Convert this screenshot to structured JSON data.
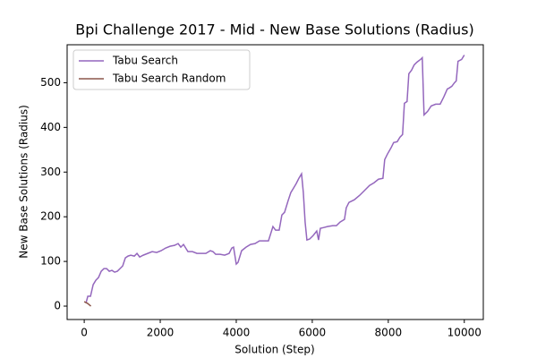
{
  "chart_data": {
    "type": "line",
    "title": "Bpi Challenge 2017 - Mid - New Base Solutions (Radius)",
    "x_label": "Solution (Step)",
    "y_label": "New Base Solutions (Radius)",
    "xlim": [
      -450,
      10500
    ],
    "xticks": [
      0,
      2000,
      4000,
      6000,
      8000,
      10000
    ],
    "ylim": [
      -30,
      585
    ],
    "yticks": [
      0,
      100,
      200,
      300,
      400,
      500
    ],
    "legend": "upper left",
    "series": [
      {
        "name": "Tabu Search",
        "color": "#9467bd",
        "x": [
          50,
          94,
          165,
          235,
          306,
          376,
          447,
          518,
          588,
          659,
          729,
          800,
          871,
          941,
          1012,
          1082,
          1153,
          1224,
          1318,
          1388,
          1459,
          1553,
          1671,
          1788,
          1906,
          2024,
          2141,
          2259,
          2376,
          2471,
          2541,
          2612,
          2729,
          2847,
          2965,
          3082,
          3200,
          3318,
          3388,
          3459,
          3576,
          3694,
          3812,
          3882,
          3929,
          4000,
          4047,
          4141,
          4259,
          4376,
          4494,
          4612,
          4729,
          4847,
          4965,
          5035,
          5129,
          5200,
          5271,
          5365,
          5435,
          5506,
          5576,
          5647,
          5718,
          5765,
          5812,
          5859,
          5929,
          6024,
          6118,
          6165,
          6212,
          6306,
          6400,
          6541,
          6635,
          6729,
          6847,
          6894,
          6965,
          7106,
          7247,
          7388,
          7506,
          7624,
          7741,
          7859,
          7906,
          7976,
          8071,
          8141,
          8235,
          8306,
          8376,
          8424,
          8494,
          8541,
          8612,
          8682,
          8753,
          8847,
          8894,
          8941,
          9035,
          9129,
          9247,
          9365,
          9459,
          9553,
          9600,
          9671,
          9741,
          9788,
          9835,
          9929,
          10000
        ],
        "values": [
          8,
          22,
          22,
          48,
          58,
          64,
          78,
          84,
          84,
          78,
          80,
          76,
          78,
          84,
          90,
          108,
          112,
          114,
          112,
          118,
          110,
          114,
          118,
          122,
          120,
          124,
          130,
          134,
          136,
          140,
          132,
          138,
          122,
          122,
          118,
          118,
          118,
          124,
          122,
          116,
          116,
          114,
          118,
          130,
          132,
          94,
          98,
          124,
          132,
          138,
          140,
          146,
          146,
          146,
          178,
          170,
          170,
          204,
          210,
          236,
          254,
          264,
          274,
          286,
          296,
          254,
          188,
          148,
          150,
          158,
          168,
          148,
          174,
          176,
          178,
          180,
          180,
          188,
          194,
          220,
          232,
          238,
          248,
          260,
          270,
          276,
          284,
          286,
          328,
          340,
          354,
          366,
          368,
          378,
          384,
          454,
          458,
          520,
          528,
          540,
          546,
          552,
          556,
          428,
          436,
          448,
          452,
          452,
          468,
          486,
          488,
          492,
          500,
          504,
          548,
          552,
          562
        ]
      },
      {
        "name": "Tabu Search Random",
        "color": "#8c564b",
        "x": [
          0,
          90,
          175
        ],
        "values": [
          10,
          6,
          0
        ]
      }
    ]
  }
}
